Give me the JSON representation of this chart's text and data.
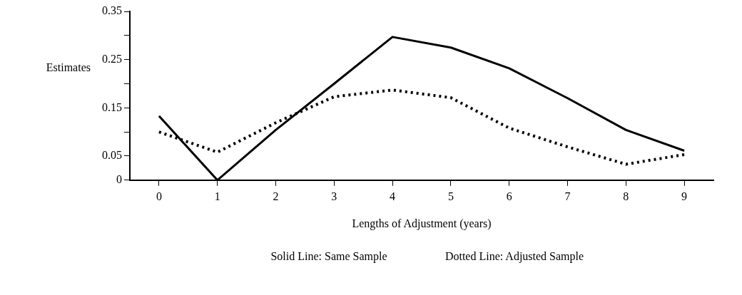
{
  "chart_data": {
    "type": "line",
    "xlabel": "Lengths of Adjustment (years)",
    "ylabel": "Estimates",
    "categories": [
      "0",
      "1",
      "2",
      "3",
      "4",
      "5",
      "6",
      "7",
      "8",
      "9"
    ],
    "series": [
      {
        "color": "#000000",
        "line_style": "solid",
        "values": [
          0.133,
          0,
          0.104,
          0.2,
          0.297,
          0.275,
          0.232,
          0.17,
          0.104,
          0.061
        ]
      },
      {
        "color": "#000000",
        "line_style": "dotted",
        "values": [
          0.1,
          0.058,
          0.119,
          0.173,
          0.187,
          0.171,
          0.108,
          0.069,
          0.033,
          0.053
        ]
      }
    ],
    "ylim": [
      0,
      0.35
    ],
    "yticks": [
      0,
      0.05,
      {
        "value": 0.1,
        "label": null
      },
      0.15,
      {
        "value": 0.2,
        "label": null
      },
      0.25,
      {
        "value": 0.3,
        "label": null
      },
      0.35
    ],
    "grid": false,
    "legend": false,
    "marker": "none",
    "annotations": [
      "Solid Line: Same Sample",
      "Dotted Line: Adjusted Sample"
    ]
  }
}
